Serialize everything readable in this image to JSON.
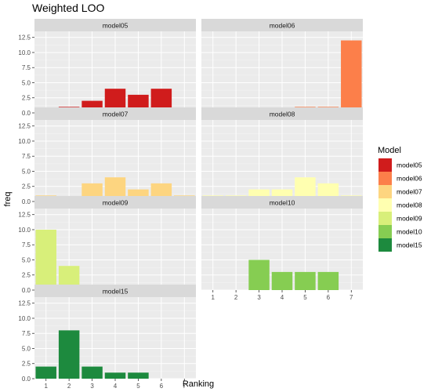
{
  "chart_data": {
    "type": "bar",
    "title": "Weighted LOO",
    "xlabel": "Ranking",
    "ylabel": "freq",
    "categories": [
      "1",
      "2",
      "3",
      "4",
      "5",
      "6",
      "7"
    ],
    "ylim": [
      0,
      13.5
    ],
    "yticks": [
      "0.0",
      "2.5",
      "5.0",
      "7.5",
      "10.0",
      "12.5"
    ],
    "facet_grid": "3 columns, 2 per row",
    "legend": {
      "title": "Model",
      "position": "right"
    },
    "series": [
      {
        "name": "model05",
        "color": "#d01c1c",
        "values": [
          0,
          1,
          2,
          4,
          3,
          4,
          0
        ]
      },
      {
        "name": "model06",
        "color": "#fc7f4a",
        "values": [
          0,
          0,
          0,
          0,
          1,
          1,
          12
        ]
      },
      {
        "name": "model07",
        "color": "#fdd580",
        "values": [
          1,
          0,
          3,
          4,
          2,
          3,
          1
        ]
      },
      {
        "name": "model08",
        "color": "#ffffb0",
        "values": [
          1,
          1,
          2,
          2,
          4,
          3,
          1
        ]
      },
      {
        "name": "model09",
        "color": "#d8ef7a",
        "values": [
          10,
          4,
          0,
          0,
          0,
          0,
          0
        ]
      },
      {
        "name": "model10",
        "color": "#86cd52",
        "values": [
          0,
          0,
          5,
          3,
          3,
          3,
          0
        ]
      },
      {
        "name": "model15",
        "color": "#1d8a3e",
        "values": [
          2,
          8,
          2,
          1,
          1,
          0,
          0
        ]
      }
    ]
  }
}
